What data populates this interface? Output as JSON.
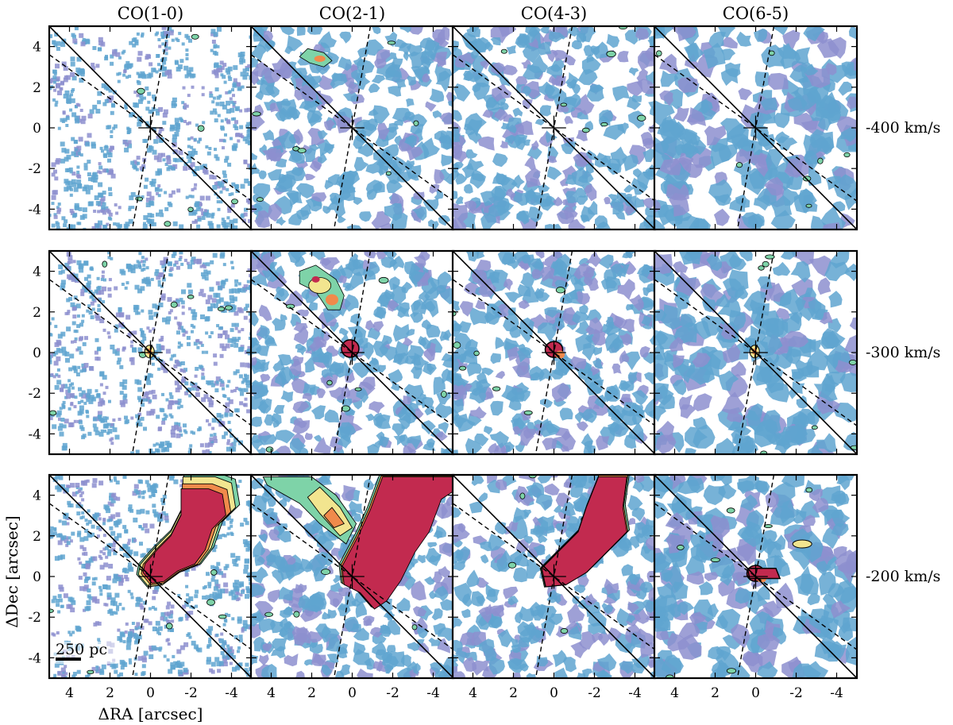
{
  "chart_data": {
    "type": "heatmap",
    "description_panels": "4 columns x 3 rows of channel maps",
    "columns": [
      "CO(1-0)",
      "CO(2-1)",
      "CO(4-3)",
      "CO(6-5)"
    ],
    "rows": [
      "-400 km/s",
      "-300 km/s",
      "-200 km/s"
    ],
    "xlabel": "ΔRA [arcsec]",
    "ylabel": "ΔDec [arcsec]",
    "xlim": [
      5,
      -5
    ],
    "ylim": [
      -5,
      5
    ],
    "xticks": [
      4,
      2,
      0,
      -2,
      -4
    ],
    "yticks": [
      4,
      2,
      0,
      -2,
      -4
    ],
    "x_tick_labels": [
      "4",
      "2",
      "0",
      "-2",
      "-4"
    ],
    "y_tick_labels": [
      "4",
      "2",
      "0",
      "-2",
      "-4"
    ],
    "scale_bar_label": "250 pc",
    "colors": {
      "noise_blue": "#5fa5d0",
      "noise_purple": "#8d8fcf",
      "low_green": "#7ed3a8",
      "mid_yellow": "#f2e58f",
      "high_orange": "#f08a4b",
      "peak_red": "#c22a4f"
    },
    "reference_lines": {
      "solid_slope_description": "solid diagonal line through origin",
      "dashed_lines": 2
    },
    "emission": [
      [
        "none",
        "weak-clump-NE",
        "weak",
        "weak"
      ],
      [
        "center-weak",
        "center+NE-clump",
        "center",
        "center-weak"
      ],
      [
        "strong-extended-SW",
        "strong-extended-SW",
        "strong-extended-SW",
        "center"
      ]
    ]
  }
}
